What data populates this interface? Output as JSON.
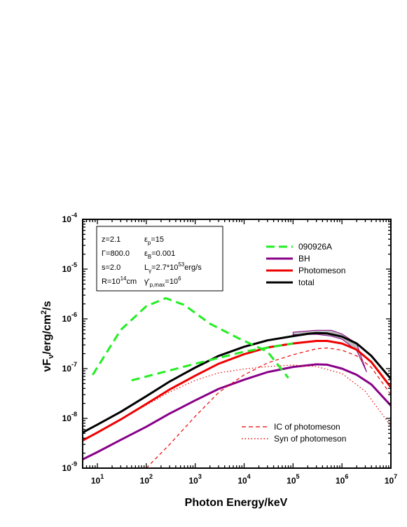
{
  "chart_data": {
    "type": "line",
    "xlabel": "Photon Energy/keV",
    "ylabel": "νF",
    "ylabel_sub": "ν",
    "ylabel_unit": "/erg/cm",
    "ylabel_unit_sup": "2",
    "ylabel_unit_tail": "/s",
    "x_scale": "log",
    "y_scale": "log",
    "xlim": [
      5,
      10000000
    ],
    "ylim": [
      1e-09,
      0.0001
    ],
    "x_ticks": [
      {
        "value": 10,
        "base": "10",
        "exp": "1"
      },
      {
        "value": 100,
        "base": "10",
        "exp": "2"
      },
      {
        "value": 1000,
        "base": "10",
        "exp": "3"
      },
      {
        "value": 10000,
        "base": "10",
        "exp": "4"
      },
      {
        "value": 100000,
        "base": "10",
        "exp": "5"
      },
      {
        "value": 1000000,
        "base": "10",
        "exp": "6"
      },
      {
        "value": 10000000,
        "base": "10",
        "exp": "7"
      }
    ],
    "y_ticks": [
      {
        "value": 1e-09,
        "base": "10",
        "exp": "-9"
      },
      {
        "value": 1e-08,
        "base": "10",
        "exp": "-8"
      },
      {
        "value": 1e-07,
        "base": "10",
        "exp": "-7"
      },
      {
        "value": 1e-06,
        "base": "10",
        "exp": "-6"
      },
      {
        "value": 1e-05,
        "base": "10",
        "exp": "-5"
      },
      {
        "value": 0.0001,
        "base": "10",
        "exp": "-4"
      }
    ],
    "params": [
      {
        "text": "z=2.1",
        "sym": "",
        "sub": "",
        "sup": "",
        "tail": ""
      },
      {
        "text": "ε",
        "sym": "",
        "sub": "p",
        "sup": "",
        "tail": "=15"
      },
      {
        "text": "Γ=800.0",
        "sym": "",
        "sub": "",
        "sup": "",
        "tail": ""
      },
      {
        "text": "ε",
        "sym": "",
        "sub": "B",
        "sup": "",
        "tail": "=0.001"
      },
      {
        "text": "s=2.0",
        "sym": "",
        "sub": "",
        "sup": "",
        "tail": ""
      },
      {
        "text": "L",
        "sym": "",
        "sub": "γ",
        "sup": "",
        "tail": "=2.7*10"
      },
      {
        "text": "R=10",
        "sym": "",
        "sub": "",
        "sup": "14",
        "tail": "cm"
      },
      {
        "text": "γ'",
        "sym": "",
        "sub": "p,max",
        "sup": "",
        "tail": "=10"
      }
    ],
    "param_extra": {
      "lum_exp": "53",
      "lum_unit": "erg/s",
      "gmax_exp": "6"
    },
    "legend_top": [
      {
        "name": "090926A",
        "color": "#22ee22",
        "style": "dashed-thick"
      },
      {
        "name": "BH",
        "color": "#880088",
        "style": "solid"
      },
      {
        "name": "Photomeson",
        "color": "#ee0000",
        "style": "solid"
      },
      {
        "name": "total",
        "color": "#000000",
        "style": "solid"
      }
    ],
    "legend_bottom": [
      {
        "name": "IC of photomeson",
        "color": "#ee0000",
        "style": "dashed"
      },
      {
        "name": "Syn of photomeson",
        "color": "#ee0000",
        "style": "dotted"
      }
    ],
    "series": [
      {
        "name": "total",
        "color": "#000000",
        "width": 3,
        "dash": "",
        "points": [
          [
            5,
            5.2e-09
          ],
          [
            10,
            7.5e-09
          ],
          [
            30,
            1.35e-08
          ],
          [
            100,
            2.8e-08
          ],
          [
            300,
            5.5e-08
          ],
          [
            1000,
            1.05e-07
          ],
          [
            3000,
            1.8e-07
          ],
          [
            10000,
            2.75e-07
          ],
          [
            30000,
            3.7e-07
          ],
          [
            100000,
            4.5e-07
          ],
          [
            200000,
            5e-07
          ],
          [
            300000,
            5.2e-07
          ],
          [
            500000,
            5.1e-07
          ],
          [
            1000000,
            4.4e-07
          ],
          [
            2000000,
            3.2e-07
          ],
          [
            4000000,
            1.8e-07
          ],
          [
            10000000,
            6.2e-08
          ]
        ]
      },
      {
        "name": "Photomeson",
        "color": "#ee0000",
        "width": 3,
        "dash": "",
        "points": [
          [
            5,
            3.6e-09
          ],
          [
            10,
            5.2e-09
          ],
          [
            30,
            9.5e-09
          ],
          [
            100,
            1.95e-08
          ],
          [
            300,
            3.8e-08
          ],
          [
            1000,
            7.2e-08
          ],
          [
            3000,
            1.25e-07
          ],
          [
            10000,
            1.95e-07
          ],
          [
            30000,
            2.65e-07
          ],
          [
            100000,
            3.2e-07
          ],
          [
            300000,
            3.6e-07
          ],
          [
            500000,
            3.6e-07
          ],
          [
            1000000,
            3.2e-07
          ],
          [
            2000000,
            2.4e-07
          ],
          [
            4000000,
            1.35e-07
          ],
          [
            10000000,
            4.2e-08
          ]
        ]
      },
      {
        "name": "BH",
        "color": "#880088",
        "width": 3,
        "dash": "",
        "points": [
          [
            5,
            1.5e-09
          ],
          [
            10,
            2.1e-09
          ],
          [
            30,
            3.7e-09
          ],
          [
            100,
            6.8e-09
          ],
          [
            300,
            1.25e-08
          ],
          [
            1000,
            2.3e-08
          ],
          [
            3000,
            3.9e-08
          ],
          [
            10000,
            6e-08
          ],
          [
            30000,
            8.5e-08
          ],
          [
            100000,
            1.08e-07
          ],
          [
            300000,
            1.22e-07
          ],
          [
            500000,
            1.2e-07
          ],
          [
            1000000,
            1e-07
          ],
          [
            2000000,
            7.5e-08
          ],
          [
            4000000,
            4.8e-08
          ],
          [
            10000000,
            1.8e-08
          ]
        ]
      },
      {
        "name": "IC of photomeson",
        "color": "#ee0000",
        "width": 1.2,
        "dash": "5,4",
        "points": [
          [
            100,
            1e-09
          ],
          [
            300,
            3e-09
          ],
          [
            1000,
            1.1e-08
          ],
          [
            3000,
            3.3e-08
          ],
          [
            10000,
            7.5e-08
          ],
          [
            30000,
            1.3e-07
          ],
          [
            100000,
            1.9e-07
          ],
          [
            300000,
            2.5e-07
          ],
          [
            500000,
            2.6e-07
          ],
          [
            1000000,
            2.35e-07
          ],
          [
            2000000,
            1.8e-07
          ],
          [
            4000000,
            1.05e-07
          ],
          [
            10000000,
            3e-08
          ]
        ]
      },
      {
        "name": "Syn of photomeson",
        "color": "#ee0000",
        "width": 1.2,
        "dash": "1.5,3",
        "points": [
          [
            5,
            3.6e-09
          ],
          [
            10,
            5.2e-09
          ],
          [
            30,
            9.3e-09
          ],
          [
            100,
            1.85e-08
          ],
          [
            300,
            3.4e-08
          ],
          [
            1000,
            5.8e-08
          ],
          [
            3000,
            8.2e-08
          ],
          [
            10000,
            9.8e-08
          ],
          [
            30000,
            1.1e-07
          ],
          [
            100000,
            1.18e-07
          ],
          [
            300000,
            1.1e-07
          ],
          [
            1000000,
            8e-08
          ],
          [
            3000000,
            3.5e-08
          ],
          [
            10000000,
            7e-09
          ]
        ]
      },
      {
        "name": "090926A peak",
        "color": "#22ee22",
        "width": 3,
        "dash": "12,7",
        "points": [
          [
            8,
            7.5e-08
          ],
          [
            30,
            6e-07
          ],
          [
            100,
            1.8e-06
          ],
          [
            250,
            2.6e-06
          ],
          [
            600,
            1.9e-06
          ],
          [
            2000,
            8e-07
          ],
          [
            8000,
            4e-07
          ],
          [
            30000,
            2.2e-07
          ],
          [
            80000,
            6.5e-08
          ]
        ]
      },
      {
        "name": "090926A power law",
        "color": "#22ee22",
        "width": 3,
        "dash": "12,7",
        "points": [
          [
            50,
            5.8e-08
          ],
          [
            1000,
            1.25e-07
          ],
          [
            10000,
            2.2e-07
          ],
          [
            100000,
            3.2e-07
          ]
        ]
      }
    ],
    "butterfly": {
      "upper": [
        [
          100000,
          5.4e-07
        ],
        [
          300000,
          5.9e-07
        ],
        [
          600000,
          5.9e-07
        ],
        [
          1000000,
          5e-07
        ],
        [
          2000000,
          3.2e-07
        ],
        [
          3200000,
          8.5e-08
        ]
      ],
      "lower": [
        [
          3200000,
          8.5e-08
        ],
        [
          2000000,
          2.3e-07
        ],
        [
          1000000,
          3.9e-07
        ],
        [
          600000,
          4.5e-07
        ],
        [
          300000,
          4.9e-07
        ],
        [
          100000,
          4.8e-07
        ]
      ],
      "line_color": "#880088",
      "fill_color": "#bbbbbb"
    }
  }
}
